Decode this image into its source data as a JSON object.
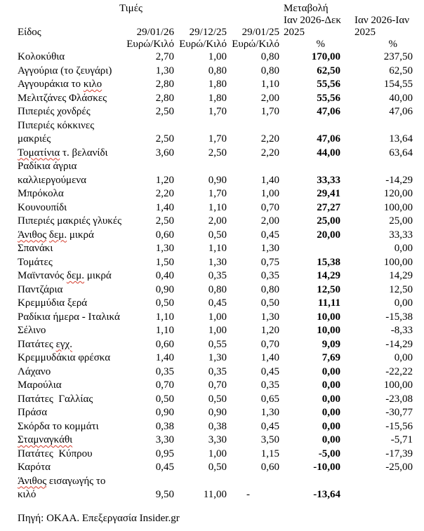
{
  "colors": {
    "background": "#ffffff",
    "text": "#000000",
    "spellcheck_underline": "#d23a2a"
  },
  "table": {
    "header": {
      "item_label": "Είδος",
      "prices_group_label": "Τιμές",
      "change_group_label": "Μεταβολή",
      "columns": [
        {
          "date": "29/01/26",
          "unit": "Ευρώ/Κιλό"
        },
        {
          "date": "29/12/25",
          "unit": "Ευρώ/Κιλό"
        },
        {
          "date": "29/01/25",
          "unit": "Ευρώ/Κιλό"
        },
        {
          "period_line1": "Ιαν 2026-Δεκ",
          "period_line2": "2025",
          "unit": "%"
        },
        {
          "period_line1": "Ιαν 2026-Ιαν",
          "period_line2": "2025",
          "unit": "%"
        }
      ]
    },
    "rows": [
      {
        "label_parts": [
          {
            "text": "Κολοκύθια",
            "misspelled": false
          }
        ],
        "values": [
          "2,70",
          "1,00",
          "0,80",
          "170,00",
          "237,50"
        ]
      },
      {
        "label_parts": [
          {
            "text": "Αγγούρια (το ζευγάρι)",
            "misspelled": false
          }
        ],
        "values": [
          "1,30",
          "0,80",
          "0,80",
          "62,50",
          "62,50"
        ]
      },
      {
        "label_parts": [
          {
            "text": "Αγγουράκια το ",
            "misspelled": false
          },
          {
            "text": "κιλο",
            "misspelled": true
          }
        ],
        "values": [
          "2,80",
          "1,80",
          "1,10",
          "55,56",
          "154,55"
        ]
      },
      {
        "label_parts": [
          {
            "text": "Μελιτζάνες Φλάσκες",
            "misspelled": false
          }
        ],
        "values": [
          "2,80",
          "1,80",
          "2,00",
          "55,56",
          "40,00"
        ]
      },
      {
        "label_parts": [
          {
            "text": "Πιπεριές χονδρές",
            "misspelled": false
          }
        ],
        "values": [
          "2,50",
          "1,70",
          "1,70",
          "47,06",
          "47,06"
        ]
      },
      {
        "label_parts": [
          {
            "text": "Πιπεριές κόκκινες\nμακριές",
            "misspelled": false
          }
        ],
        "values": [
          "2,50",
          "1,70",
          "2,20",
          "47,06",
          "13,64"
        ]
      },
      {
        "label_parts": [
          {
            "text": "Τοματίνια",
            "misspelled": true
          },
          {
            "text": " τ. βελανίδι",
            "misspelled": false
          }
        ],
        "values": [
          "3,60",
          "2,50",
          "2,20",
          "44,00",
          "63,64"
        ]
      },
      {
        "label_parts": [
          {
            "text": "Ραδίκια άγρια\nκαλλιεργούμενα",
            "misspelled": false
          }
        ],
        "values": [
          "1,20",
          "0,90",
          "1,40",
          "33,33",
          "-14,29"
        ]
      },
      {
        "label_parts": [
          {
            "text": "Μπρόκολα",
            "misspelled": false
          }
        ],
        "values": [
          "2,20",
          "1,70",
          "1,00",
          "29,41",
          "120,00"
        ]
      },
      {
        "label_parts": [
          {
            "text": "Κουνουπίδι",
            "misspelled": false
          }
        ],
        "values": [
          "1,40",
          "1,10",
          "0,70",
          "27,27",
          "100,00"
        ]
      },
      {
        "label_parts": [
          {
            "text": "Πιπεριές μακριές γλυκές",
            "misspelled": false
          }
        ],
        "values": [
          "2,50",
          "2,00",
          "2,00",
          "25,00",
          "25,00"
        ]
      },
      {
        "label_parts": [
          {
            "text": "Άνιθος",
            "misspelled": true
          },
          {
            "text": " ",
            "misspelled": false
          },
          {
            "text": "δεμ.",
            "misspelled": true
          },
          {
            "text": " μικρά",
            "misspelled": false
          }
        ],
        "values": [
          "0,60",
          "0,50",
          "0,45",
          "20,00",
          "33,33"
        ]
      },
      {
        "label_parts": [
          {
            "text": "Σπανάκι",
            "misspelled": false
          }
        ],
        "values": [
          "1,30",
          "1,10",
          "1,30",
          "",
          "0,00"
        ]
      },
      {
        "label_parts": [
          {
            "text": "Τομάτες",
            "misspelled": false
          }
        ],
        "values": [
          "1,50",
          "1,30",
          "0,75",
          "15,38",
          "100,00"
        ]
      },
      {
        "label_parts": [
          {
            "text": "Μαϊντανός ",
            "misspelled": false
          },
          {
            "text": "δεμ.",
            "misspelled": true
          },
          {
            "text": " μικρά",
            "misspelled": false
          }
        ],
        "values": [
          "0,40",
          "0,35",
          "0,35",
          "14,29",
          "14,29"
        ]
      },
      {
        "label_parts": [
          {
            "text": "Παντζάρια",
            "misspelled": false
          }
        ],
        "values": [
          "0,90",
          "0,80",
          "0,80",
          "12,50",
          "12,50"
        ]
      },
      {
        "label_parts": [
          {
            "text": "Κρεμμύδια ξερά",
            "misspelled": false
          }
        ],
        "values": [
          "0,50",
          "0,45",
          "0,50",
          "11,11",
          "0,00"
        ]
      },
      {
        "label_parts": [
          {
            "text": "Ραδίκια ήμερα - Ιταλικά",
            "misspelled": false
          }
        ],
        "values": [
          "1,10",
          "1,00",
          "1,30",
          "10,00",
          "-15,38"
        ]
      },
      {
        "label_parts": [
          {
            "text": "Σέλινο",
            "misspelled": false
          }
        ],
        "values": [
          "1,10",
          "1,00",
          "1,20",
          "10,00",
          "-8,33"
        ]
      },
      {
        "label_parts": [
          {
            "text": "Πατάτες ",
            "misspelled": false
          },
          {
            "text": "εγχ.",
            "misspelled": true
          }
        ],
        "values": [
          "0,60",
          "0,55",
          "0,70",
          "9,09",
          "-14,29"
        ]
      },
      {
        "label_parts": [
          {
            "text": "Κρεμμυδάκια φρέσκα",
            "misspelled": false
          }
        ],
        "values": [
          "1,40",
          "1,30",
          "1,40",
          "7,69",
          "0,00"
        ]
      },
      {
        "label_parts": [
          {
            "text": "Λάχανο",
            "misspelled": false
          }
        ],
        "values": [
          "0,35",
          "0,35",
          "0,45",
          "0,00",
          "-22,22"
        ]
      },
      {
        "label_parts": [
          {
            "text": "Μαρούλια",
            "misspelled": false
          }
        ],
        "values": [
          "0,70",
          "0,70",
          "0,35",
          "0,00",
          "100,00"
        ]
      },
      {
        "label_parts": [
          {
            "text": "Πατάτες  Γαλλίας",
            "misspelled": false
          }
        ],
        "values": [
          "0,50",
          "0,50",
          "0,65",
          "0,00",
          "-23,08"
        ]
      },
      {
        "label_parts": [
          {
            "text": "Πράσα",
            "misspelled": false
          }
        ],
        "values": [
          "0,90",
          "0,90",
          "1,30",
          "0,00",
          "-30,77"
        ]
      },
      {
        "label_parts": [
          {
            "text": "Σκόρδα το κομμάτι",
            "misspelled": false
          }
        ],
        "values": [
          "0,38",
          "0,38",
          "0,45",
          "0,00",
          "-15,56"
        ]
      },
      {
        "label_parts": [
          {
            "text": "Σταμναγκάθι",
            "misspelled": true
          }
        ],
        "values": [
          "3,30",
          "3,30",
          "3,50",
          "0,00",
          "-5,71"
        ]
      },
      {
        "label_parts": [
          {
            "text": "Πατάτες  Κύπρου",
            "misspelled": false
          }
        ],
        "values": [
          "0,95",
          "1,00",
          "1,15",
          "-5,00",
          "-17,39"
        ]
      },
      {
        "label_parts": [
          {
            "text": "Καρότα",
            "misspelled": false
          }
        ],
        "values": [
          "0,45",
          "0,50",
          "0,60",
          "-10,00",
          "-25,00"
        ]
      },
      {
        "label_parts": [
          {
            "text": "Άνιθος",
            "misspelled": true
          },
          {
            "text": " εισαγωγής το\nκιλό",
            "misspelled": false
          }
        ],
        "values": [
          "9,50",
          "11,00",
          "-",
          "-13,64",
          ""
        ]
      }
    ]
  },
  "footer": {
    "source": "Πηγή: ΟΚΑΑ. Επεξεργασία Insider.gr"
  }
}
